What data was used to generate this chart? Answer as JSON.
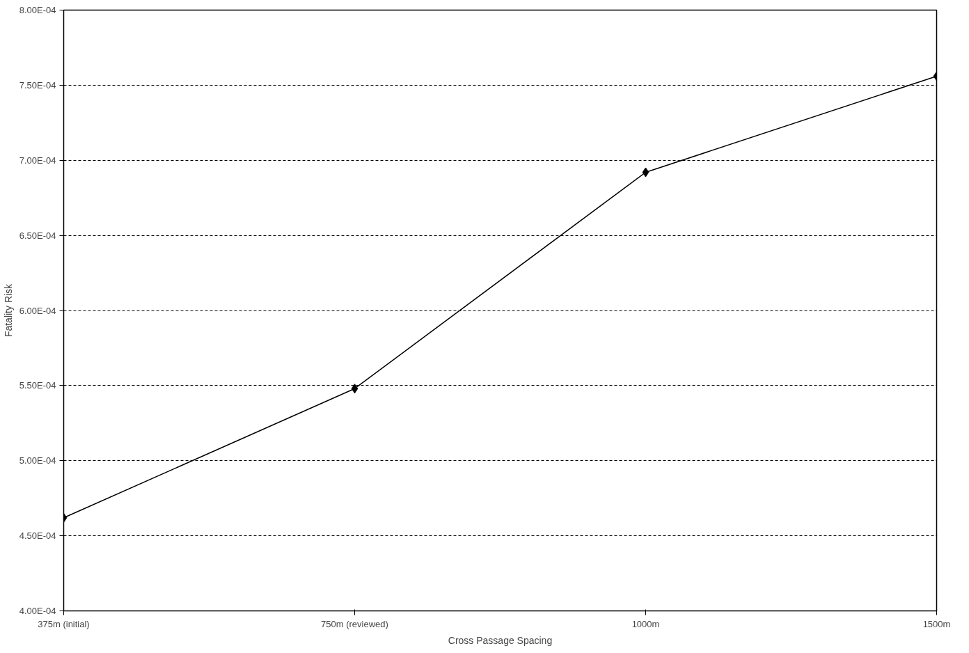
{
  "chart_data": {
    "type": "line",
    "xlabel": "Cross Passage Spacing",
    "ylabel": "Fatality Risk",
    "categories": [
      "375m (initial)",
      "750m (reviewed)",
      "1000m",
      "1500m"
    ],
    "series": [
      {
        "color": "#000000",
        "values": [
          0.000462,
          0.000548,
          0.000692,
          0.000756
        ]
      }
    ],
    "ylim": [
      0.0004,
      0.0008
    ],
    "yticks": [
      {
        "value": 0.0004,
        "label": "4.00E-04"
      },
      {
        "value": 0.00045,
        "label": "4.50E-04"
      },
      {
        "value": 0.0005,
        "label": "5.00E-04"
      },
      {
        "value": 0.00055,
        "label": "5.50E-04"
      },
      {
        "value": 0.0006,
        "label": "6.00E-04"
      },
      {
        "value": 0.00065,
        "label": "6.50E-04"
      },
      {
        "value": 0.0007,
        "label": "7.00E-04"
      },
      {
        "value": 0.00075,
        "label": "7.50E-04"
      },
      {
        "value": 0.0008,
        "label": "8.00E-04"
      }
    ],
    "grid": "y",
    "marker": "diamond",
    "line_style": "solid"
  }
}
